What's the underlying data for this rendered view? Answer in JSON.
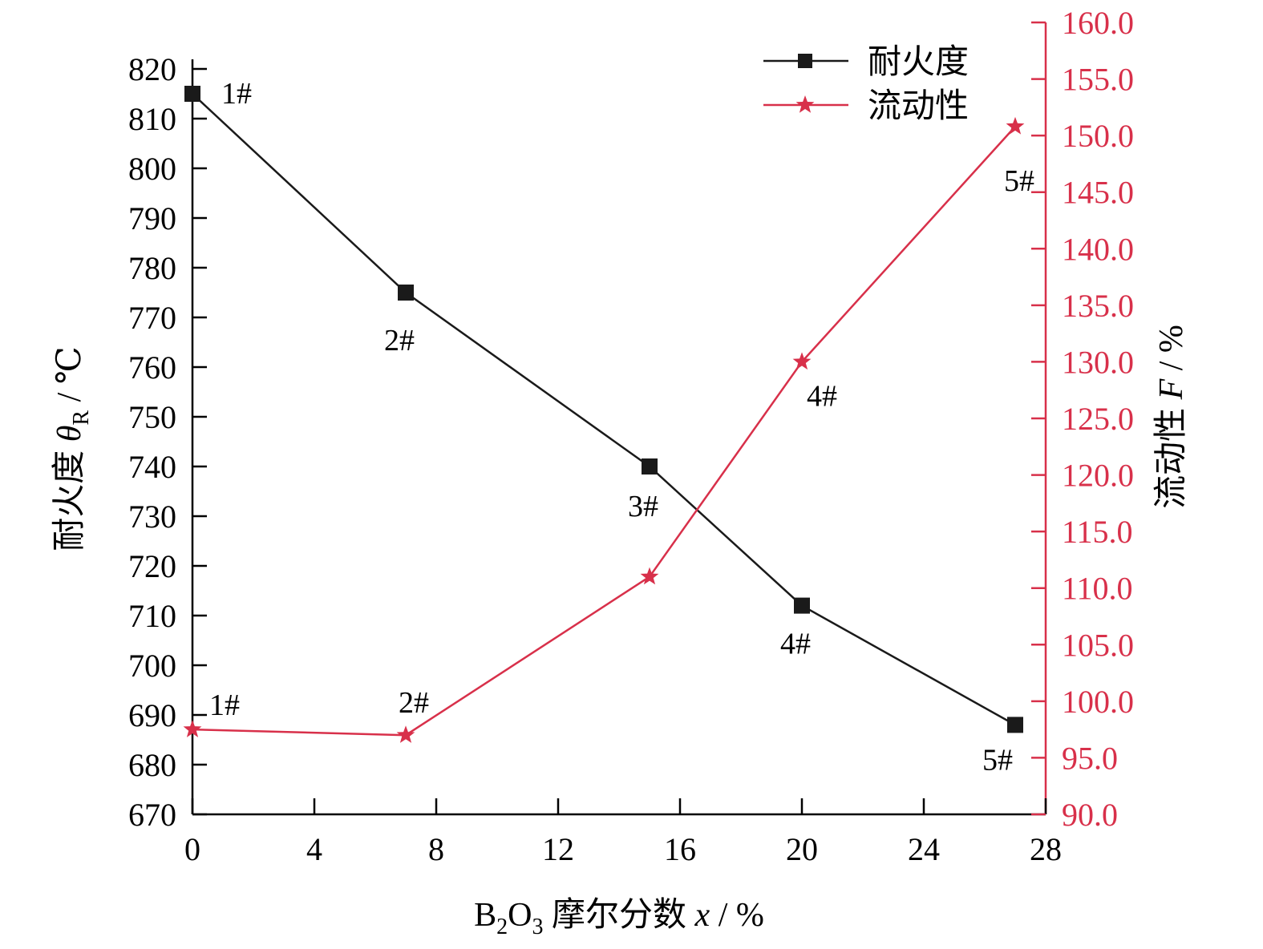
{
  "chart_data": {
    "type": "line",
    "x": [
      0,
      7,
      15,
      20,
      27
    ],
    "xlim": [
      0,
      28
    ],
    "x_ticks": [
      "0",
      "4",
      "8",
      "12",
      "16",
      "20",
      "24",
      "28"
    ],
    "xlabel": {
      "pre": "B",
      "sub1": "2",
      "mid": "O",
      "sub2": "3",
      "post": " 摩尔分数 ",
      "var": "x",
      "unit": " / %"
    },
    "y_left": {
      "lim": [
        670,
        820
      ],
      "ticks": [
        "670",
        "680",
        "690",
        "700",
        "710",
        "720",
        "730",
        "740",
        "750",
        "760",
        "770",
        "780",
        "790",
        "800",
        "810",
        "820"
      ],
      "label": {
        "pre": "耐火度 ",
        "var": "θ",
        "sub": "R",
        "unit": " / ℃"
      },
      "color": "#000000"
    },
    "y_right": {
      "lim": [
        90,
        160
      ],
      "ticks": [
        "90.0",
        "95.0",
        "100.0",
        "105.0",
        "110.0",
        "115.0",
        "120.0",
        "125.0",
        "130.0",
        "135.0",
        "140.0",
        "145.0",
        "150.0",
        "155.0",
        "160.0"
      ],
      "label": {
        "pre": "流动性 ",
        "var": "F",
        "unit": " / %"
      },
      "color": "#d8304a"
    },
    "series": [
      {
        "name": "耐火度",
        "axis": "left",
        "color": "#1a1a1a",
        "marker": "square",
        "values": [
          815,
          775,
          740,
          712,
          688
        ],
        "labels": [
          "1#",
          "2#",
          "3#",
          "4#",
          "5#"
        ]
      },
      {
        "name": "流动性",
        "axis": "right",
        "color": "#d8304a",
        "marker": "star",
        "values": [
          97.5,
          97.0,
          111.0,
          130.0,
          150.8
        ],
        "labels": [
          "1#",
          "2#",
          "",
          "4#",
          "5#"
        ]
      }
    ],
    "legend": "top-right",
    "grid": false
  }
}
